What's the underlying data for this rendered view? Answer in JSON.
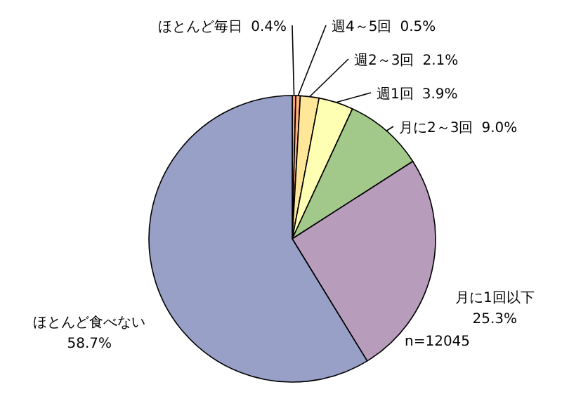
{
  "chart_data": {
    "type": "pie",
    "categories": [
      "ほとんど毎日",
      "週4～5回",
      "週2～3回",
      "週1回",
      "月に2～3回",
      "月に1回以下",
      "ほとんど食べない"
    ],
    "values": [
      0.4,
      0.5,
      2.1,
      3.9,
      9.0,
      25.3,
      58.7
    ],
    "colors": [
      "#ff9966",
      "#ffb380",
      "#ffe699",
      "#ffffb3",
      "#a3c98a",
      "#b89cbc",
      "#98a0c8"
    ],
    "value_labels": [
      "0.4%",
      "0.5%",
      "2.1%",
      "3.9%",
      "9.0%",
      "25.3%",
      "58.7%"
    ],
    "annotations": [
      "n=12045"
    ]
  }
}
